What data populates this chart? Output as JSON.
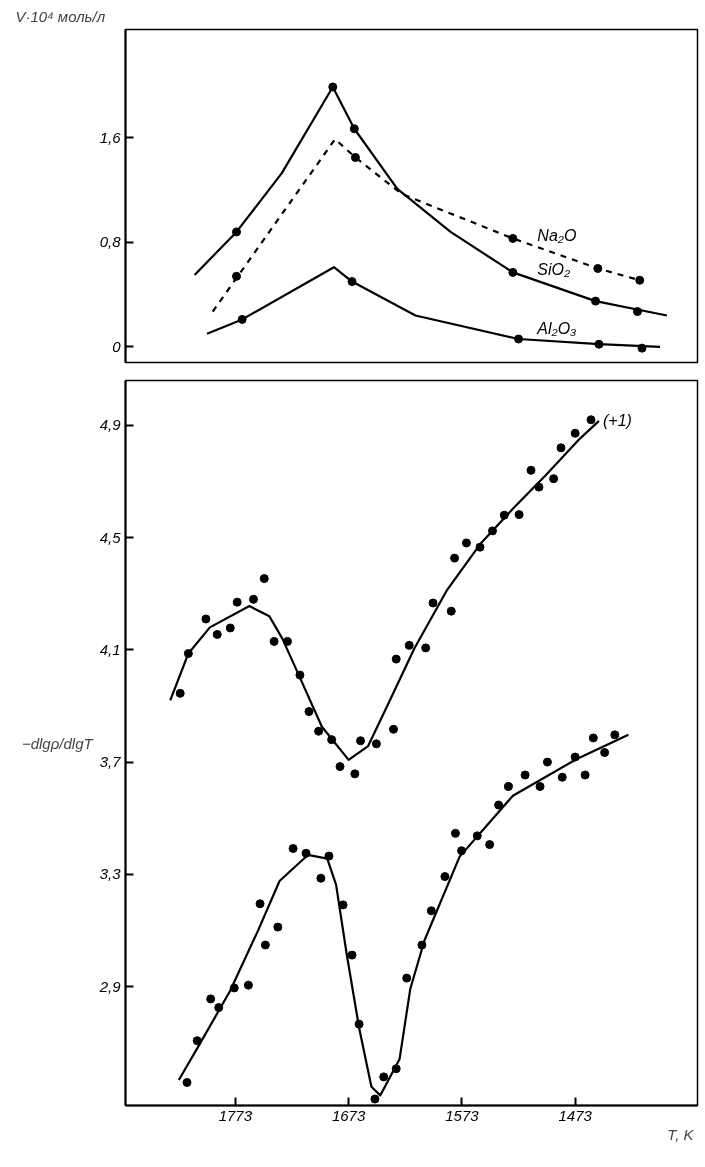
{
  "chart_data": [
    {
      "type": "line",
      "ylabel": "V·10⁴ моль/л",
      "xlim": [
        1870,
        1365
      ],
      "xticks": [
        1773,
        1673,
        1573,
        1473
      ],
      "ylim": [
        -0.12,
        2.43
      ],
      "yticks": [
        {
          "value": 0,
          "label": "0"
        },
        {
          "value": 0.8,
          "label": "0,8"
        },
        {
          "value": 1.6,
          "label": "1,6"
        }
      ],
      "tick_labels": "y",
      "series": [
        {
          "name": "SiO₂",
          "color": "#000000",
          "line_style": "solid",
          "x": [
            1809,
            1772,
            1732,
            1687,
            1668,
            1630,
            1583,
            1528,
            1455,
            1392
          ],
          "values": [
            0.55,
            0.88,
            1.33,
            1.99,
            1.67,
            1.21,
            0.88,
            0.57,
            0.35,
            0.24
          ]
        },
        {
          "type": "scatter",
          "marker": "circle",
          "color": "#000000",
          "x": [
            1772,
            1687,
            1668,
            1528,
            1455,
            1418
          ],
          "values": [
            0.88,
            1.99,
            1.67,
            0.57,
            0.35,
            0.27
          ]
        },
        {
          "name": "Na₂O",
          "color": "#000000",
          "line_style": "dashed",
          "x": [
            1793,
            1685,
            1667,
            1626,
            1528,
            1453,
            1416
          ],
          "values": [
            0.27,
            1.59,
            1.45,
            1.17,
            0.83,
            0.6,
            0.51
          ]
        },
        {
          "type": "scatter",
          "marker": "circle",
          "color": "#000000",
          "x": [
            1772,
            1667,
            1528,
            1453,
            1416
          ],
          "values": [
            0.54,
            1.45,
            0.83,
            0.6,
            0.51
          ]
        },
        {
          "name": "Al₂O₃",
          "color": "#000000",
          "line_style": "solid",
          "x": [
            1798,
            1767,
            1686,
            1670,
            1614,
            1523,
            1452,
            1398
          ],
          "values": [
            0.1,
            0.21,
            0.61,
            0.5,
            0.24,
            0.06,
            0.02,
            0.0
          ]
        },
        {
          "type": "scatter",
          "marker": "circle",
          "color": "#000000",
          "x": [
            1767,
            1670,
            1523,
            1452,
            1414
          ],
          "values": [
            0.21,
            0.5,
            0.06,
            0.02,
            -0.01
          ]
        }
      ]
    },
    {
      "type": "line",
      "ylabel": "−dlgρ/dlgT",
      "xlabel": "T, K",
      "xlim": [
        1870,
        1365
      ],
      "xticks": [
        1773,
        1673,
        1573,
        1473
      ],
      "ylim": [
        2.476,
        5.06
      ],
      "yticks": [
        {
          "value": 2.9,
          "label": "2,9"
        },
        {
          "value": 3.3,
          "label": "3,3"
        },
        {
          "value": 3.7,
          "label": "3,7"
        },
        {
          "value": 4.1,
          "label": "4,1"
        },
        {
          "value": 4.5,
          "label": "4,5"
        },
        {
          "value": 4.9,
          "label": "4,9"
        }
      ],
      "series": [
        {
          "color": "#000000",
          "line_style": "solid",
          "x": [
            1830.5,
            1814.5,
            1795.5,
            1760.6,
            1743,
            1731.5,
            1717,
            1696.6,
            1673,
            1655.8,
            1638,
            1615,
            1586,
            1557,
            1528,
            1498.6,
            1469,
            1452
          ],
          "values": [
            3.92,
            4.087,
            4.18,
            4.256,
            4.22,
            4.14,
            4.01,
            3.826,
            3.708,
            3.757,
            3.908,
            4.105,
            4.314,
            4.476,
            4.603,
            4.724,
            4.852,
            4.916
          ]
        },
        {
          "type": "scatter",
          "marker": "circle",
          "color": "#000000",
          "x": [
            1821.7,
            1814.5,
            1799,
            1789,
            1777.5,
            1771.4,
            1757,
            1747.5,
            1738.8,
            1727,
            1716,
            1708,
            1699.5,
            1688,
            1680.6,
            1667.5,
            1662.5,
            1648.5,
            1633.4,
            1631,
            1619.5,
            1605,
            1598.5,
            1582.4,
            1579.5,
            1569,
            1557,
            1546,
            1535.6,
            1522.5,
            1512,
            1505,
            1492,
            1485.5,
            1473,
            1459
          ],
          "values": [
            3.945,
            4.087,
            4.21,
            4.155,
            4.178,
            4.27,
            4.28,
            4.354,
            4.13,
            4.13,
            4.01,
            3.88,
            3.81,
            3.78,
            3.684,
            3.658,
            3.776,
            3.765,
            3.817,
            4.067,
            4.116,
            4.107,
            4.267,
            4.238,
            4.427,
            4.481,
            4.466,
            4.524,
            4.58,
            4.582,
            4.74,
            4.68,
            4.71,
            4.82,
            4.872,
            4.92
          ]
        },
        {
          "color": "#000000",
          "line_style": "solid",
          "x": [
            1822.9,
            1805.8,
            1777.7,
            1752.7,
            1734,
            1709,
            1691.9,
            1684.1,
            1674.7,
            1663.8,
            1652.9,
            1645.1,
            1628,
            1618.6,
            1606,
            1575,
            1528,
            1472,
            1426
          ],
          "values": [
            2.567,
            2.686,
            2.884,
            3.102,
            3.276,
            3.369,
            3.356,
            3.263,
            3.015,
            2.754,
            2.543,
            2.512,
            2.642,
            2.891,
            3.065,
            3.363,
            3.58,
            3.71,
            3.797
          ]
        },
        {
          "type": "scatter",
          "marker": "circle",
          "color": "#000000",
          "x": [
            1815.7,
            1806.7,
            1794.8,
            1787.7,
            1774,
            1761.5,
            1751.2,
            1746.5,
            1735.5,
            1722,
            1710.6,
            1697.5,
            1690.4,
            1677.9,
            1670,
            1663.8,
            1649.8,
            1642,
            1631,
            1621.7,
            1608.3,
            1600,
            1588,
            1578.7,
            1573.3,
            1559.4,
            1548.5,
            1540.6,
            1531.9,
            1517.2,
            1504,
            1497.5,
            1484.4,
            1473,
            1464.2,
            1457,
            1447,
            1438
          ],
          "values": [
            2.558,
            2.707,
            2.856,
            2.825,
            2.895,
            2.905,
            3.195,
            3.048,
            3.112,
            3.392,
            3.375,
            3.286,
            3.365,
            3.191,
            3.012,
            2.766,
            2.499,
            2.578,
            2.607,
            2.93,
            3.048,
            3.17,
            3.292,
            3.446,
            3.384,
            3.437,
            3.406,
            3.547,
            3.613,
            3.654,
            3.613,
            3.7,
            3.646,
            3.718,
            3.654,
            3.786,
            3.734,
            3.797
          ]
        }
      ],
      "annotations": [
        "(+1)"
      ]
    }
  ]
}
